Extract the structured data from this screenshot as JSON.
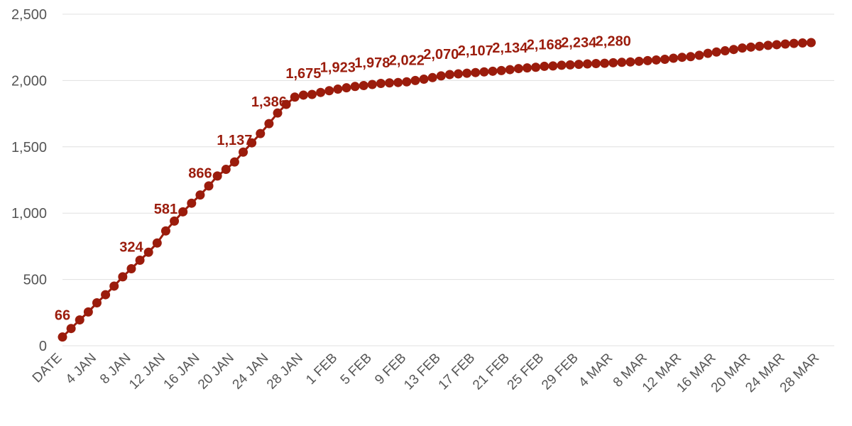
{
  "chart_data": {
    "type": "line",
    "title": "",
    "xlabel": "",
    "ylabel": "",
    "ylim": [
      0,
      2500
    ],
    "grid": true,
    "legend": "none",
    "color": "#9b1c0c",
    "y_ticks": [
      0,
      500,
      1000,
      1500,
      2000,
      2500
    ],
    "y_tick_labels": [
      "0",
      "500",
      "1,000",
      "1,500",
      "2,000",
      "2,500"
    ],
    "x_tick_labels": [
      "DATE",
      "4 JAN",
      "8 JAN",
      "12 JAN",
      "16 JAN",
      "20 JAN",
      "24 JAN",
      "28 JAN",
      "1 FEB",
      "5 FEB",
      "9 FEB",
      "13 FEB",
      "17 FEB",
      "21 FEB",
      "25 FEB",
      "29 FEB",
      "4 MAR",
      "8 MAR",
      "12 MAR",
      "16 MAR",
      "20 MAR",
      "24 MAR",
      "28 MAR"
    ],
    "series": [
      {
        "values": [
          66,
          130,
          195,
          255,
          324,
          385,
          450,
          520,
          581,
          645,
          705,
          775,
          866,
          940,
          1010,
          1075,
          1137,
          1205,
          1280,
          1330,
          1386,
          1460,
          1530,
          1600,
          1675,
          1755,
          1820,
          1875,
          1890,
          1895,
          1910,
          1923,
          1935,
          1945,
          1955,
          1962,
          1970,
          1978,
          1982,
          1985,
          1990,
          2000,
          2010,
          2022,
          2035,
          2045,
          2050,
          2055,
          2060,
          2065,
          2070,
          2075,
          2082,
          2090,
          2095,
          2100,
          2107,
          2110,
          2115,
          2118,
          2122,
          2125,
          2128,
          2130,
          2134,
          2137,
          2140,
          2145,
          2150,
          2155,
          2160,
          2168,
          2175,
          2180,
          2190,
          2205,
          2215,
          2224,
          2234,
          2245,
          2252,
          2258,
          2265,
          2270,
          2275,
          2280,
          2283,
          2286
        ]
      }
    ],
    "data_labels": [
      {
        "index": 0,
        "text": "66"
      },
      {
        "index": 8,
        "text": "324"
      },
      {
        "index": 12,
        "text": "581"
      },
      {
        "index": 16,
        "text": "866"
      },
      {
        "index": 20,
        "text": "1,137"
      },
      {
        "index": 24,
        "text": "1,386"
      },
      {
        "index": 28,
        "text": "1,675"
      },
      {
        "index": 32,
        "text": "1,923"
      },
      {
        "index": 36,
        "text": "1,978"
      },
      {
        "index": 40,
        "text": "2,022"
      },
      {
        "index": 44,
        "text": "2,070"
      },
      {
        "index": 48,
        "text": "2,107"
      },
      {
        "index": 52,
        "text": "2,134"
      },
      {
        "index": 56,
        "text": "2,168"
      },
      {
        "index": 60,
        "text": "2,234"
      },
      {
        "index": 64,
        "text": "2,280"
      }
    ]
  }
}
